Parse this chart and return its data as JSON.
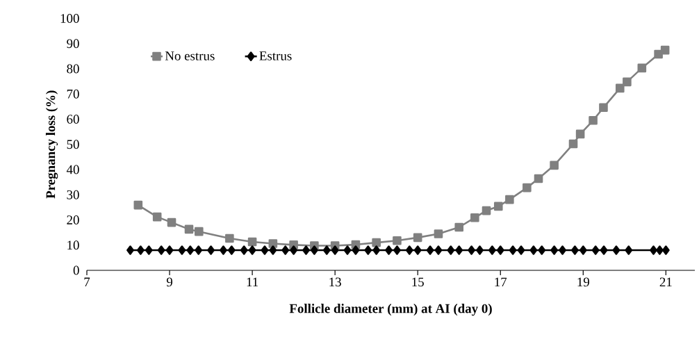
{
  "chart_data": {
    "type": "line",
    "xlabel": "Follicle diameter (mm) at AI (day 0)",
    "ylabel": "Pregnancy loss (%)",
    "xlim": [
      7,
      21.7
    ],
    "xticks": [
      7,
      9,
      11,
      13,
      15,
      17,
      19,
      21
    ],
    "ylim": [
      0,
      100
    ],
    "yticks": [
      0,
      10,
      20,
      30,
      40,
      50,
      60,
      70,
      80,
      90,
      100
    ],
    "grid": false,
    "legend": "top left",
    "series": [
      {
        "name": "No estrus",
        "color": "#808080",
        "marker": "square",
        "x": [
          8.24,
          8.7,
          9.05,
          9.47,
          9.71,
          10.45,
          11.0,
          11.5,
          12.0,
          12.5,
          13.0,
          13.5,
          14.0,
          14.5,
          15.0,
          15.5,
          16.0,
          16.38,
          16.66,
          16.95,
          17.22,
          17.64,
          17.92,
          18.3,
          18.76,
          18.93,
          19.24,
          19.49,
          19.89,
          20.06,
          20.42,
          20.82,
          20.98
        ],
        "values": [
          25.9,
          21.2,
          19.0,
          16.3,
          15.4,
          12.7,
          11.3,
          10.6,
          10.1,
          9.8,
          9.8,
          10.2,
          11.0,
          11.8,
          13.0,
          14.5,
          17.1,
          20.9,
          23.7,
          25.4,
          28.1,
          32.8,
          36.4,
          41.7,
          50.2,
          54.1,
          59.5,
          64.6,
          72.3,
          74.8,
          80.3,
          85.8,
          87.4
        ]
      },
      {
        "name": "Estrus",
        "color": "#000000",
        "marker": "diamond",
        "x": [
          8.05,
          8.3,
          8.5,
          8.8,
          9.0,
          9.3,
          9.5,
          9.7,
          10.0,
          10.3,
          10.5,
          10.8,
          11.0,
          11.3,
          11.5,
          11.8,
          12.0,
          12.3,
          12.5,
          12.8,
          13.0,
          13.3,
          13.5,
          13.8,
          14.0,
          14.3,
          14.5,
          14.8,
          15.0,
          15.3,
          15.5,
          15.8,
          16.0,
          16.3,
          16.5,
          16.8,
          17.0,
          17.3,
          17.5,
          17.8,
          18.0,
          18.3,
          18.5,
          18.8,
          19.0,
          19.3,
          19.5,
          19.8,
          20.1,
          20.7,
          20.85,
          21.0
        ],
        "values": [
          8,
          8,
          8,
          8,
          8,
          8,
          8,
          8,
          8,
          8,
          8,
          8,
          8,
          8,
          8,
          8,
          8,
          8,
          8,
          8,
          8,
          8,
          8,
          8,
          8,
          8,
          8,
          8,
          8,
          8,
          8,
          8,
          8,
          8,
          8,
          8,
          8,
          8,
          8,
          8,
          8,
          8,
          8,
          8,
          8,
          8,
          8,
          8,
          8,
          8,
          8,
          8
        ]
      }
    ]
  }
}
